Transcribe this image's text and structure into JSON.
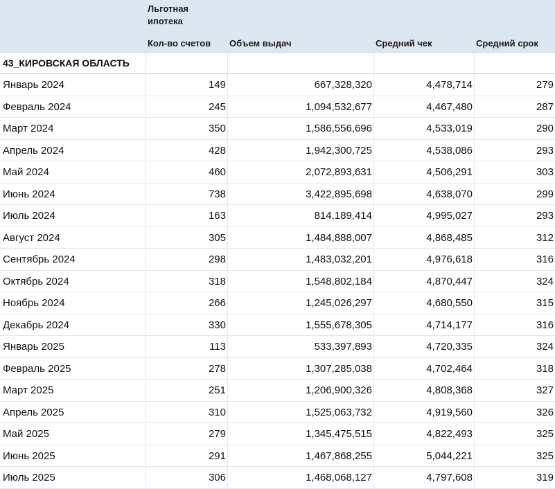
{
  "header": {
    "group_label_line1": "Льготная",
    "group_label_line2": "ипотека",
    "columns": [
      "Кол-во счетов",
      "Объем выдач",
      "Средний чек",
      "Средний срок"
    ]
  },
  "region": "43_КИРОВСКАЯ ОБЛАСТЬ",
  "rows": [
    {
      "month": "Январь 2024",
      "count": "149",
      "volume": "667,328,320",
      "avg_check": "4,478,714",
      "avg_term": "279"
    },
    {
      "month": "Февраль 2024",
      "count": "245",
      "volume": "1,094,532,677",
      "avg_check": "4,467,480",
      "avg_term": "287"
    },
    {
      "month": "Март 2024",
      "count": "350",
      "volume": "1,586,556,696",
      "avg_check": "4,533,019",
      "avg_term": "290"
    },
    {
      "month": "Апрель 2024",
      "count": "428",
      "volume": "1,942,300,725",
      "avg_check": "4,538,086",
      "avg_term": "293"
    },
    {
      "month": "Май 2024",
      "count": "460",
      "volume": "2,072,893,631",
      "avg_check": "4,506,291",
      "avg_term": "303"
    },
    {
      "month": "Июнь 2024",
      "count": "738",
      "volume": "3,422,895,698",
      "avg_check": "4,638,070",
      "avg_term": "299"
    },
    {
      "month": "Июль 2024",
      "count": "163",
      "volume": "814,189,414",
      "avg_check": "4,995,027",
      "avg_term": "293"
    },
    {
      "month": "Август 2024",
      "count": "305",
      "volume": "1,484,888,007",
      "avg_check": "4,868,485",
      "avg_term": "312"
    },
    {
      "month": "Сентябрь 2024",
      "count": "298",
      "volume": "1,483,032,201",
      "avg_check": "4,976,618",
      "avg_term": "316"
    },
    {
      "month": "Октябрь 2024",
      "count": "318",
      "volume": "1,548,802,184",
      "avg_check": "4,870,447",
      "avg_term": "324"
    },
    {
      "month": "Ноябрь 2024",
      "count": "266",
      "volume": "1,245,026,297",
      "avg_check": "4,680,550",
      "avg_term": "315"
    },
    {
      "month": "Декабрь 2024",
      "count": "330",
      "volume": "1,555,678,305",
      "avg_check": "4,714,177",
      "avg_term": "316"
    },
    {
      "month": "Январь 2025",
      "count": "113",
      "volume": "533,397,893",
      "avg_check": "4,720,335",
      "avg_term": "324"
    },
    {
      "month": "Февраль 2025",
      "count": "278",
      "volume": "1,307,285,038",
      "avg_check": "4,702,464",
      "avg_term": "318"
    },
    {
      "month": "Март 2025",
      "count": "251",
      "volume": "1,206,900,326",
      "avg_check": "4,808,368",
      "avg_term": "327"
    },
    {
      "month": "Апрель 2025",
      "count": "310",
      "volume": "1,525,063,732",
      "avg_check": "4,919,560",
      "avg_term": "326"
    },
    {
      "month": "Май 2025",
      "count": "279",
      "volume": "1,345,475,515",
      "avg_check": "4,822,493",
      "avg_term": "325"
    },
    {
      "month": "Июнь 2025",
      "count": "291",
      "volume": "1,467,868,255",
      "avg_check": "5,044,221",
      "avg_term": "325"
    },
    {
      "month": "Июль 2025",
      "count": "306",
      "volume": "1,468,068,127",
      "avg_check": "4,797,608",
      "avg_term": "319"
    }
  ]
}
